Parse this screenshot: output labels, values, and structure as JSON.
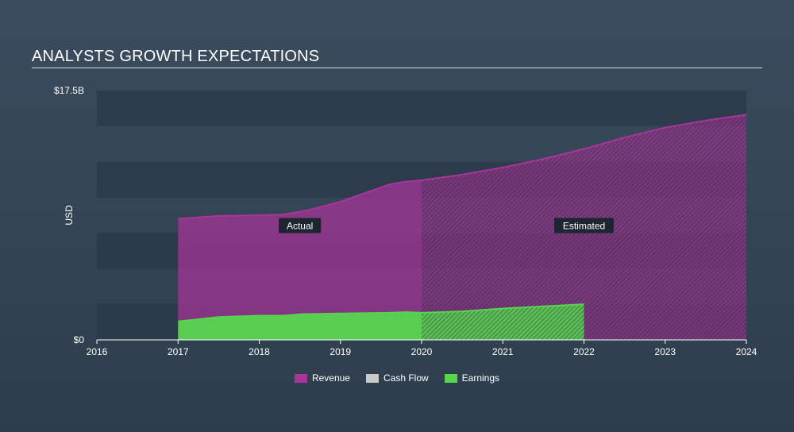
{
  "header": {
    "title": "ANALYSTS GROWTH EXPECTATIONS"
  },
  "colors": {
    "revenue": "#a8359a",
    "cashflow": "#c8c8c8",
    "earnings": "#56d54f",
    "band": "#2b3a49",
    "axis": "#ffffff"
  },
  "legend": [
    {
      "name": "Revenue",
      "color": "#a8359a"
    },
    {
      "name": "Cash Flow",
      "color": "#c8c8c8"
    },
    {
      "name": "Earnings",
      "color": "#56d54f"
    }
  ],
  "chart_data": {
    "type": "area",
    "title": "ANALYSTS GROWTH EXPECTATIONS",
    "xlabel": "",
    "ylabel": "USD",
    "xlim": [
      2016,
      2024.0
    ],
    "ylim": [
      0,
      17.5
    ],
    "y_unit": "B",
    "y_tick_labels": [
      {
        "value": 17.5,
        "label": "$17.5B"
      },
      {
        "value": 0,
        "label": "$0"
      }
    ],
    "x_ticks": [
      2016,
      2017,
      2018,
      2019,
      2020,
      2021,
      2022,
      2023,
      2024
    ],
    "split_year": 2020,
    "annotations": [
      {
        "text": "Actual",
        "x": 2018.5,
        "y": 8.0
      },
      {
        "text": "Estimated",
        "x": 2022.0,
        "y": 8.0
      }
    ],
    "series": [
      {
        "name": "Revenue",
        "actual": [
          [
            2017.0,
            8.5
          ],
          [
            2017.5,
            8.7
          ],
          [
            2018.0,
            8.75
          ],
          [
            2018.3,
            8.8
          ],
          [
            2018.6,
            9.1
          ],
          [
            2019.0,
            9.7
          ],
          [
            2019.3,
            10.3
          ],
          [
            2019.6,
            10.9
          ],
          [
            2019.8,
            11.1
          ],
          [
            2020.0,
            11.2
          ]
        ],
        "estimated": [
          [
            2020.0,
            11.2
          ],
          [
            2020.5,
            11.6
          ],
          [
            2021.0,
            12.1
          ],
          [
            2021.5,
            12.7
          ],
          [
            2022.0,
            13.4
          ],
          [
            2022.5,
            14.2
          ],
          [
            2023.0,
            14.9
          ],
          [
            2023.5,
            15.4
          ],
          [
            2024.0,
            15.8
          ]
        ]
      },
      {
        "name": "Earnings",
        "actual": [
          [
            2017.0,
            1.3
          ],
          [
            2017.5,
            1.6
          ],
          [
            2018.0,
            1.7
          ],
          [
            2018.3,
            1.7
          ],
          [
            2018.5,
            1.8
          ],
          [
            2019.0,
            1.85
          ],
          [
            2019.6,
            1.9
          ],
          [
            2019.8,
            1.95
          ],
          [
            2020.0,
            1.9
          ]
        ],
        "estimated": [
          [
            2020.0,
            1.9
          ],
          [
            2020.5,
            2.0
          ],
          [
            2021.0,
            2.2
          ],
          [
            2021.5,
            2.35
          ],
          [
            2022.0,
            2.5
          ]
        ]
      }
    ]
  }
}
